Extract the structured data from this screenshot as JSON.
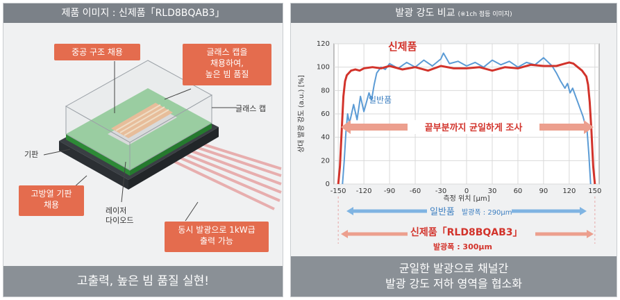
{
  "left_panel": {
    "title": "제품 이미지 : 신제품「RLD8BQAB3」",
    "callouts": {
      "hollow": "중공 구조 채용",
      "glass_cap_adopt": "글래스 캡을\n채용하여,\n높은 빔 품질",
      "heat_substrate": "고방열 기판\n채용",
      "simultaneous": "동시 발광으로 1kW급\n출력 가능"
    },
    "labels": {
      "glass_cap": "글래스 캡",
      "substrate": "기판",
      "laser_diode": "레이저\n다이오드"
    },
    "footer": "고출력, 높은 빔 품질 실현!"
  },
  "right_panel": {
    "title": "발광 강도 비교",
    "title_note": "(※1ch 점등 이미지)",
    "footer_line1": "균일한 발광으로 채널간",
    "footer_line2": "발광 강도 저하 영역을 협소화",
    "annotations": {
      "new_product": "신제품",
      "general_product": "일반품",
      "uniform": "끝부분까지 균일하게 조사",
      "general_width_label": "일반품",
      "general_width_value": "발광폭 : 290μm",
      "new_width_label": "신제품「RLD8BQAB3」",
      "new_width_value": "발광폭 : 300μm"
    }
  },
  "chart_data": {
    "type": "line",
    "xlabel": "측정 위치 [μm]",
    "ylabel": "상대 발광 강도 (a.u.) [%]",
    "xlim": [
      -155,
      155
    ],
    "ylim": [
      0,
      120
    ],
    "x_ticks": [
      -150,
      -120,
      -90,
      -60,
      -30,
      0,
      30,
      60,
      90,
      120,
      150
    ],
    "y_ticks": [
      0,
      20,
      40,
      60,
      80,
      100,
      120
    ],
    "grid": true,
    "series": [
      {
        "name": "신제품",
        "color": "#d2332b",
        "x": [
          -150,
          -148,
          -146,
          -144,
          -142,
          -140,
          -135,
          -130,
          -125,
          -120,
          -110,
          -100,
          -90,
          -75,
          -60,
          -45,
          -30,
          -15,
          0,
          15,
          30,
          45,
          60,
          75,
          90,
          105,
          115,
          120,
          125,
          130,
          135,
          140,
          142,
          144,
          146,
          148,
          150
        ],
        "y": [
          0,
          15,
          45,
          75,
          88,
          93,
          97,
          98,
          97,
          99,
          100,
          99,
          101,
          98,
          100,
          97,
          101,
          99,
          99,
          100,
          97,
          100,
          99,
          102,
          101,
          101,
          103,
          104,
          103,
          100,
          97,
          92,
          85,
          70,
          45,
          15,
          0
        ]
      },
      {
        "name": "일반품",
        "color": "#5b9bd5",
        "x": [
          -145,
          -143,
          -141,
          -139,
          -137,
          -135,
          -132,
          -128,
          -124,
          -120,
          -117,
          -114,
          -111,
          -108,
          -105,
          -100,
          -95,
          -90,
          -80,
          -70,
          -60,
          -50,
          -40,
          -30,
          -27,
          -20,
          -10,
          0,
          10,
          20,
          30,
          40,
          50,
          60,
          70,
          80,
          90,
          100,
          105,
          110,
          115,
          118,
          121,
          124,
          127,
          130,
          133,
          136,
          139,
          141,
          143,
          145
        ],
        "y": [
          0,
          20,
          45,
          60,
          52,
          58,
          68,
          55,
          75,
          62,
          70,
          78,
          72,
          85,
          95,
          100,
          98,
          103,
          99,
          104,
          100,
          106,
          101,
          107,
          112,
          103,
          105,
          101,
          104,
          100,
          106,
          102,
          105,
          100,
          104,
          102,
          108,
          101,
          95,
          88,
          82,
          86,
          78,
          82,
          76,
          70,
          64,
          58,
          50,
          45,
          25,
          0
        ]
      }
    ]
  }
}
